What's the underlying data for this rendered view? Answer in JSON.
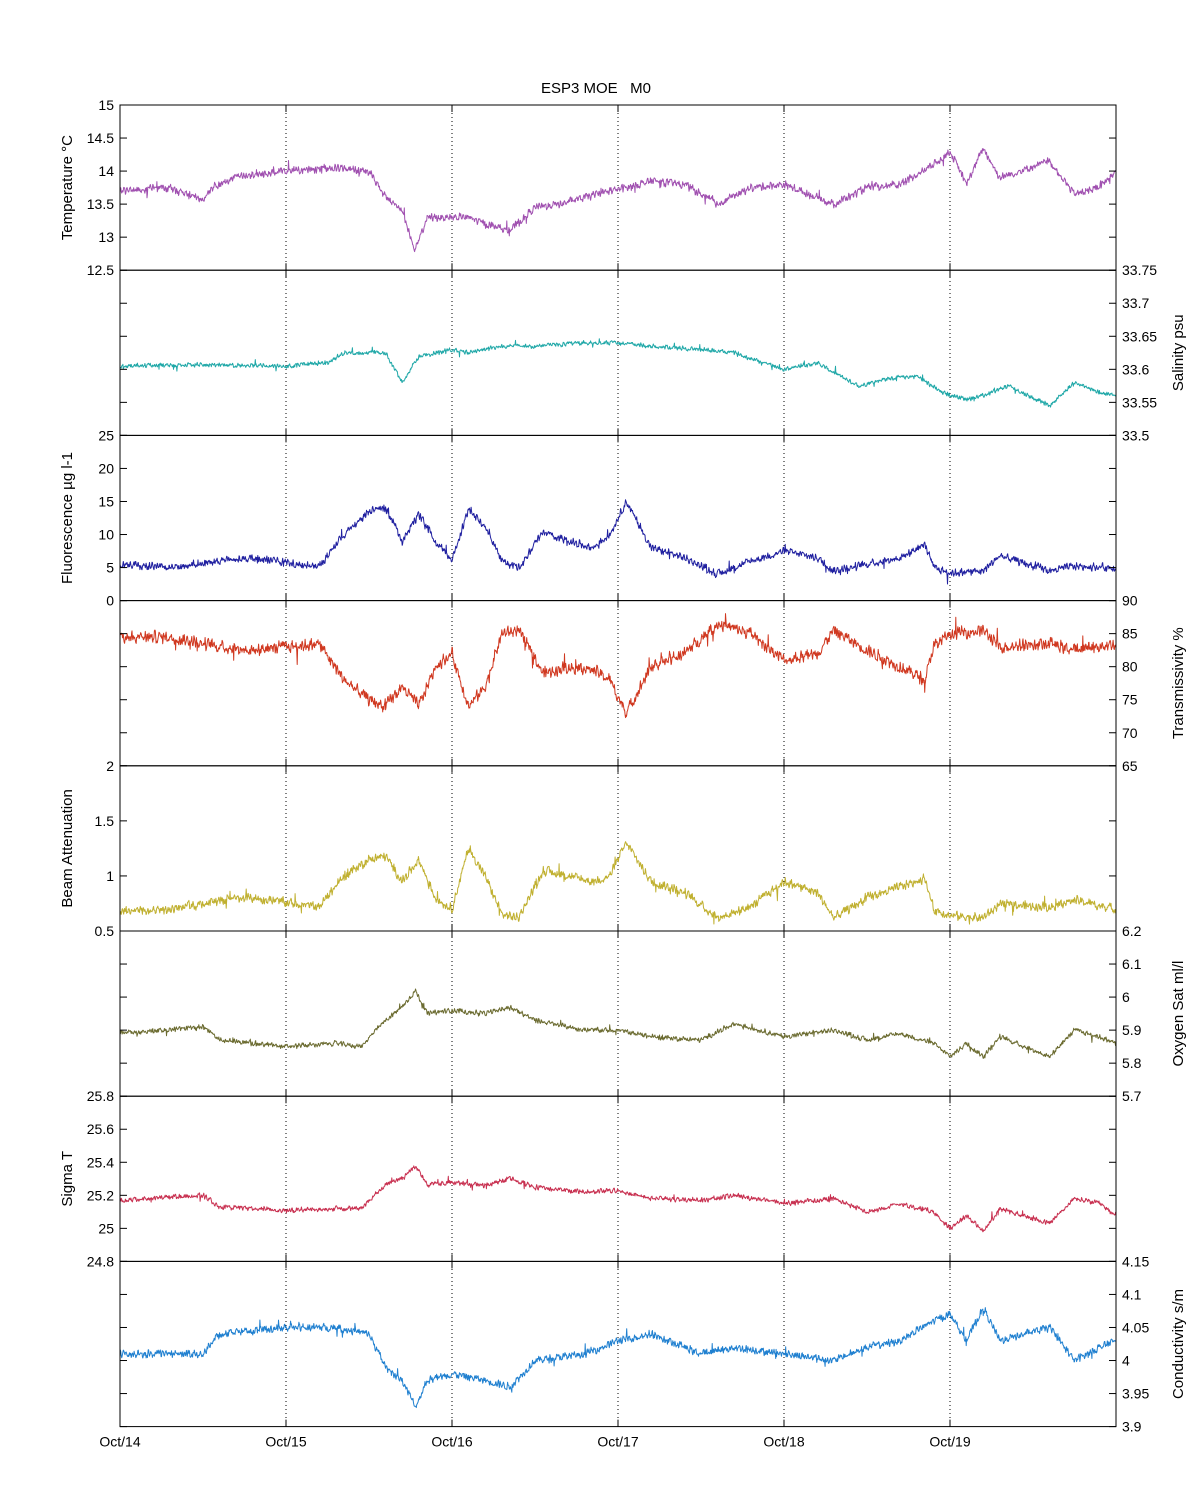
{
  "chart_data": {
    "type": "line",
    "title": "ESP3 MOE   M0",
    "x_tick_labels": [
      "Oct/14",
      "Oct/15",
      "Oct/16",
      "Oct/17",
      "Oct/18",
      "Oct/19"
    ],
    "x_range_days": [
      14,
      20
    ],
    "grid": "vertical dotted at day boundaries",
    "panels": [
      {
        "id": "temperature",
        "ylabel": "Temperature °C",
        "axis_side": "left",
        "ylim": [
          12.5,
          15
        ],
        "yticks": [
          12.5,
          13,
          13.5,
          14,
          14.5,
          15
        ],
        "ytick_labels": [
          "12.5",
          "13",
          "13.5",
          "14",
          "14.5",
          "15"
        ],
        "color": "#a050b0",
        "noise": 0.07,
        "x": [
          14.0,
          14.3,
          14.5,
          14.55,
          14.7,
          15.0,
          15.3,
          15.5,
          15.6,
          15.7,
          15.78,
          15.85,
          16.0,
          16.1,
          16.2,
          16.35,
          16.5,
          16.65,
          16.8,
          16.95,
          17.05,
          17.2,
          17.4,
          17.6,
          17.8,
          18.0,
          18.2,
          18.3,
          18.5,
          18.7,
          18.9,
          19.0,
          19.1,
          19.2,
          19.3,
          19.6,
          19.75,
          19.9,
          20.0
        ],
        "values": [
          13.7,
          13.75,
          13.55,
          13.75,
          13.9,
          14.0,
          14.05,
          14.0,
          13.6,
          13.4,
          12.8,
          13.3,
          13.3,
          13.3,
          13.2,
          13.1,
          13.45,
          13.5,
          13.6,
          13.7,
          13.75,
          13.85,
          13.8,
          13.5,
          13.75,
          13.8,
          13.6,
          13.5,
          13.75,
          13.8,
          14.1,
          14.3,
          13.8,
          14.35,
          13.9,
          14.15,
          13.65,
          13.75,
          14.0
        ]
      },
      {
        "id": "salinity",
        "ylabel": "Salinity psu",
        "axis_side": "right",
        "ylim": [
          33.5,
          33.75
        ],
        "yticks": [
          33.5,
          33.55,
          33.6,
          33.65,
          33.7,
          33.75
        ],
        "ytick_labels": [
          "33.5",
          "33.55",
          "33.6",
          "33.65",
          "33.7",
          "33.75"
        ],
        "color": "#20a8a8",
        "noise": 0.004,
        "x": [
          14.0,
          14.5,
          15.0,
          15.25,
          15.35,
          15.6,
          15.7,
          15.8,
          16.0,
          16.1,
          16.3,
          16.5,
          16.8,
          17.0,
          17.2,
          17.5,
          17.7,
          18.0,
          18.2,
          18.3,
          18.45,
          18.6,
          18.8,
          18.95,
          19.1,
          19.2,
          19.35,
          19.6,
          19.75,
          19.9,
          20.0
        ],
        "values": [
          33.605,
          33.607,
          33.605,
          33.61,
          33.625,
          33.625,
          33.58,
          33.62,
          33.63,
          33.625,
          33.635,
          33.635,
          33.64,
          33.64,
          33.635,
          33.63,
          33.625,
          33.6,
          33.61,
          33.595,
          33.575,
          33.585,
          33.59,
          33.565,
          33.555,
          33.56,
          33.575,
          33.545,
          33.58,
          33.565,
          33.56
        ]
      },
      {
        "id": "fluorescence",
        "ylabel": "Fluorescence µg l-1",
        "axis_side": "left",
        "ylim": [
          0,
          25
        ],
        "yticks": [
          0,
          5,
          10,
          15,
          20,
          25
        ],
        "ytick_labels": [
          "0",
          "5",
          "10",
          "15",
          "20",
          "25"
        ],
        "color": "#2020a0",
        "noise": 0.7,
        "x": [
          14.0,
          14.3,
          14.6,
          14.8,
          15.0,
          15.2,
          15.35,
          15.5,
          15.6,
          15.7,
          15.8,
          15.9,
          16.0,
          16.1,
          16.2,
          16.3,
          16.4,
          16.55,
          16.7,
          16.85,
          16.95,
          17.05,
          17.2,
          17.4,
          17.6,
          17.8,
          18.0,
          18.2,
          18.3,
          18.5,
          18.7,
          18.85,
          18.9,
          19.0,
          19.2,
          19.3,
          19.6,
          19.75,
          20.0
        ],
        "values": [
          5.5,
          5.0,
          6.0,
          6.5,
          5.8,
          5.2,
          10.0,
          13.5,
          14.0,
          9.0,
          13.0,
          9.0,
          6.0,
          14.0,
          11.0,
          6.0,
          5.0,
          10.5,
          9.0,
          8.0,
          10.0,
          15.0,
          8.0,
          6.5,
          4.0,
          6.0,
          7.5,
          6.5,
          4.5,
          5.5,
          6.5,
          8.5,
          5.0,
          4.2,
          4.5,
          6.8,
          4.5,
          5.2,
          5.0
        ]
      },
      {
        "id": "transmissivity",
        "ylabel": "Transmissivity %",
        "axis_side": "right",
        "ylim": [
          65,
          90
        ],
        "yticks": [
          65,
          70,
          75,
          80,
          85,
          90
        ],
        "ytick_labels": [
          "65",
          "70",
          "75",
          "80",
          "85",
          "90"
        ],
        "color": "#d03820",
        "noise": 1.1,
        "x": [
          14.0,
          14.3,
          14.6,
          14.8,
          15.0,
          15.2,
          15.35,
          15.5,
          15.6,
          15.7,
          15.8,
          15.9,
          16.0,
          16.1,
          16.2,
          16.3,
          16.4,
          16.55,
          16.7,
          16.85,
          16.95,
          17.05,
          17.2,
          17.4,
          17.6,
          17.8,
          18.0,
          18.2,
          18.3,
          18.5,
          18.7,
          18.85,
          18.9,
          19.0,
          19.2,
          19.3,
          19.6,
          19.75,
          20.0
        ],
        "values": [
          84.5,
          84.5,
          83.0,
          82.5,
          83.0,
          83.5,
          78.0,
          75.0,
          74.0,
          77.0,
          74.0,
          80.0,
          82.0,
          74.0,
          77.0,
          85.0,
          85.5,
          79.0,
          80.0,
          79.5,
          78.0,
          73.0,
          80.0,
          82.0,
          86.5,
          85.0,
          81.0,
          82.0,
          85.5,
          82.5,
          80.0,
          78.0,
          83.0,
          85.0,
          85.5,
          83.0,
          83.5,
          82.5,
          83.5
        ]
      },
      {
        "id": "beam_attenuation",
        "ylabel": "Beam Attenuation",
        "axis_side": "left",
        "ylim": [
          0.5,
          2
        ],
        "yticks": [
          0.5,
          1,
          1.5,
          2
        ],
        "ytick_labels": [
          "0.5",
          "1",
          "1.5",
          "2"
        ],
        "color": "#c0b030",
        "noise": 0.05,
        "x": [
          14.0,
          14.3,
          14.6,
          14.8,
          15.0,
          15.2,
          15.35,
          15.5,
          15.6,
          15.7,
          15.8,
          15.9,
          16.0,
          16.1,
          16.2,
          16.3,
          16.4,
          16.55,
          16.7,
          16.85,
          16.95,
          17.05,
          17.2,
          17.4,
          17.6,
          17.8,
          18.0,
          18.2,
          18.3,
          18.5,
          18.7,
          18.85,
          18.9,
          19.0,
          19.2,
          19.3,
          19.6,
          19.75,
          20.0
        ],
        "values": [
          0.68,
          0.7,
          0.78,
          0.8,
          0.76,
          0.72,
          1.0,
          1.15,
          1.18,
          0.95,
          1.15,
          0.8,
          0.7,
          1.25,
          1.0,
          0.65,
          0.62,
          1.05,
          1.0,
          0.95,
          1.0,
          1.3,
          0.95,
          0.85,
          0.62,
          0.72,
          0.95,
          0.85,
          0.62,
          0.8,
          0.9,
          0.98,
          0.7,
          0.64,
          0.62,
          0.74,
          0.72,
          0.78,
          0.7
        ]
      },
      {
        "id": "oxygen_sat",
        "ylabel": "Oxygen Sat ml/l",
        "axis_side": "right",
        "ylim": [
          5.7,
          6.2
        ],
        "yticks": [
          5.7,
          5.8,
          5.9,
          6.0,
          6.1,
          6.2
        ],
        "ytick_labels": [
          "5.7",
          "5.8",
          "5.9",
          "6",
          "6.1",
          "6.2"
        ],
        "color": "#6b6b30",
        "noise": 0.009,
        "x": [
          14.0,
          14.5,
          14.6,
          15.0,
          15.3,
          15.45,
          15.6,
          15.7,
          15.78,
          15.85,
          16.0,
          16.2,
          16.35,
          16.5,
          16.8,
          17.0,
          17.2,
          17.5,
          17.7,
          18.0,
          18.3,
          18.5,
          18.7,
          18.9,
          19.0,
          19.1,
          19.2,
          19.3,
          19.6,
          19.75,
          19.9,
          20.0
        ],
        "values": [
          5.89,
          5.91,
          5.87,
          5.85,
          5.86,
          5.85,
          5.93,
          5.97,
          6.02,
          5.95,
          5.96,
          5.95,
          5.97,
          5.93,
          5.9,
          5.9,
          5.88,
          5.87,
          5.92,
          5.88,
          5.9,
          5.87,
          5.89,
          5.86,
          5.82,
          5.86,
          5.82,
          5.88,
          5.82,
          5.9,
          5.88,
          5.86
        ]
      },
      {
        "id": "sigma_t",
        "ylabel": "Sigma T",
        "axis_side": "left",
        "ylim": [
          24.8,
          25.8
        ],
        "yticks": [
          24.8,
          25.0,
          25.2,
          25.4,
          25.6,
          25.8
        ],
        "ytick_labels": [
          "24.8",
          "25",
          "25.2",
          "25.4",
          "25.6",
          "25.8"
        ],
        "color": "#c83050",
        "noise": 0.018,
        "x": [
          14.0,
          14.5,
          14.6,
          15.0,
          15.3,
          15.45,
          15.6,
          15.7,
          15.78,
          15.85,
          16.0,
          16.2,
          16.35,
          16.5,
          16.8,
          17.0,
          17.2,
          17.5,
          17.7,
          18.0,
          18.3,
          18.5,
          18.7,
          18.9,
          19.0,
          19.1,
          19.2,
          19.3,
          19.6,
          19.75,
          19.9,
          20.0
        ],
        "values": [
          25.17,
          25.2,
          25.13,
          25.11,
          25.12,
          25.12,
          25.27,
          25.3,
          25.38,
          25.26,
          25.28,
          25.26,
          25.3,
          25.25,
          25.22,
          25.23,
          25.18,
          25.17,
          25.2,
          25.15,
          25.18,
          25.1,
          25.15,
          25.1,
          25.0,
          25.08,
          24.98,
          25.12,
          25.03,
          25.18,
          25.15,
          25.08
        ]
      },
      {
        "id": "conductivity",
        "ylabel": "Conductivity s/m",
        "axis_side": "right",
        "ylim": [
          3.9,
          4.15
        ],
        "yticks": [
          3.9,
          3.95,
          4.0,
          4.05,
          4.1,
          4.15
        ],
        "ytick_labels": [
          "3.9",
          "3.95",
          "4",
          "4.05",
          "4.1",
          "4.15"
        ],
        "color": "#2080d0",
        "noise": 0.007,
        "x": [
          14.0,
          14.5,
          14.6,
          15.0,
          15.3,
          15.5,
          15.6,
          15.7,
          15.78,
          15.85,
          16.0,
          16.2,
          16.35,
          16.5,
          16.8,
          17.0,
          17.2,
          17.5,
          17.7,
          18.0,
          18.3,
          18.5,
          18.7,
          18.9,
          19.0,
          19.1,
          19.2,
          19.3,
          19.6,
          19.75,
          19.9,
          20.0
        ],
        "values": [
          4.01,
          4.01,
          4.04,
          4.05,
          4.05,
          4.04,
          3.99,
          3.97,
          3.93,
          3.97,
          3.98,
          3.97,
          3.96,
          4.0,
          4.01,
          4.03,
          4.04,
          4.01,
          4.02,
          4.01,
          4.0,
          4.02,
          4.03,
          4.06,
          4.07,
          4.03,
          4.08,
          4.03,
          4.05,
          4.0,
          4.02,
          4.03
        ]
      }
    ]
  }
}
